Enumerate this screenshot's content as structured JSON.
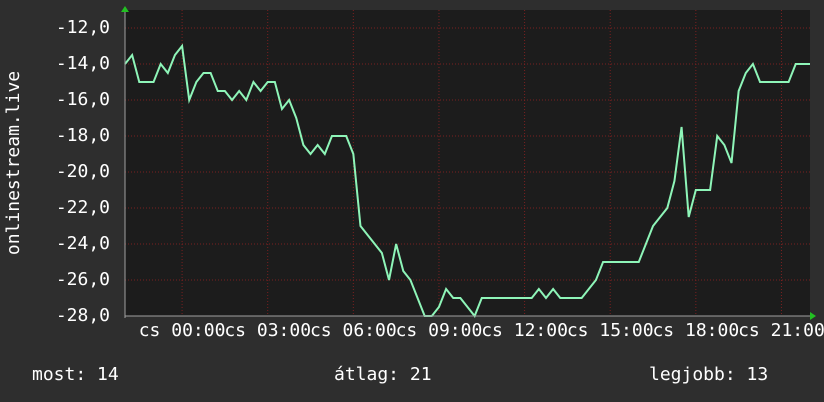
{
  "chart_data": {
    "type": "line",
    "y_label": "onlinestream.live",
    "x": [
      -2,
      -1.75,
      -1.5,
      -1.25,
      -1,
      -0.75,
      -0.5,
      -0.25,
      0,
      0.25,
      0.5,
      0.75,
      1,
      1.25,
      1.5,
      1.75,
      2,
      2.25,
      2.5,
      2.75,
      3,
      3.25,
      3.5,
      3.75,
      4,
      4.25,
      4.5,
      4.75,
      5,
      5.25,
      5.5,
      5.75,
      6,
      6.25,
      6.5,
      6.75,
      7,
      7.25,
      7.5,
      7.75,
      8,
      8.25,
      8.5,
      8.75,
      9,
      9.25,
      9.5,
      9.75,
      10,
      10.25,
      10.5,
      10.75,
      11,
      11.25,
      11.5,
      11.75,
      12,
      12.25,
      12.5,
      12.75,
      13,
      13.25,
      13.5,
      13.75,
      14,
      14.25,
      14.5,
      14.75,
      15,
      15.25,
      15.5,
      15.75,
      16,
      16.25,
      16.5,
      16.75,
      17,
      17.25,
      17.5,
      17.75,
      18,
      18.25,
      18.5,
      18.75,
      19,
      19.25,
      19.5,
      19.75,
      20,
      20.25,
      20.5,
      20.75,
      21,
      21.25,
      21.5,
      21.75,
      22
    ],
    "series": [
      {
        "color": "#8ef5b8",
        "values": [
          -14,
          -13.5,
          -15,
          -15,
          -15,
          -14,
          -14.5,
          -13.5,
          -13,
          -16,
          -15,
          -14.5,
          -14.5,
          -15.5,
          -15.5,
          -16,
          -15.5,
          -16,
          -15,
          -15.5,
          -15,
          -15,
          -16.5,
          -16,
          -17,
          -18.5,
          -19,
          -18.5,
          -19,
          -18,
          -18,
          -18,
          -19,
          -23,
          -23.5,
          -24,
          -24.5,
          -26,
          -24,
          -25.5,
          -26,
          -27,
          -28,
          -28,
          -27.5,
          -26.5,
          -27,
          -27,
          -27.5,
          -28,
          -27,
          -27,
          -27,
          -27,
          -27,
          -27,
          -27,
          -27,
          -26.5,
          -27,
          -26.5,
          -27,
          -27,
          -27,
          -27,
          -26.5,
          -26,
          -25,
          -25,
          -25,
          -25,
          -25,
          -25,
          -24,
          -23,
          -22.5,
          -22,
          -20.5,
          -17.5,
          -22.5,
          -21,
          -21,
          -21,
          -18,
          -18.5,
          -19.5,
          -15.5,
          -14.5,
          -14,
          -15,
          -15,
          -15,
          -15,
          -15,
          -14,
          -14,
          -14
        ]
      }
    ],
    "xlim": [
      -2,
      22
    ],
    "xticks": [
      {
        "value": 0,
        "label": "cs 00:00"
      },
      {
        "value": 3,
        "label": "cs 03:00"
      },
      {
        "value": 6,
        "label": "cs 06:00"
      },
      {
        "value": 9,
        "label": "cs 09:00"
      },
      {
        "value": 12,
        "label": "cs 12:00"
      },
      {
        "value": 15,
        "label": "cs 15:00"
      },
      {
        "value": 18,
        "label": "cs 18:00"
      },
      {
        "value": 21,
        "label": "cs 21:00"
      }
    ],
    "ylim": [
      -28,
      -11
    ],
    "yticks": [
      {
        "value": -28,
        "label": "-28,0"
      },
      {
        "value": -26,
        "label": "-26,0"
      },
      {
        "value": -24,
        "label": "-24,0"
      },
      {
        "value": -22,
        "label": "-22,0"
      },
      {
        "value": -20,
        "label": "-20,0"
      },
      {
        "value": -18,
        "label": "-18,0"
      },
      {
        "value": -16,
        "label": "-16,0"
      },
      {
        "value": -14,
        "label": "-14,0"
      },
      {
        "value": -12,
        "label": "-12,0"
      }
    ],
    "grid": true,
    "footer": [
      "most: 14",
      "átlag: 21",
      "legjobb: 13"
    ]
  }
}
